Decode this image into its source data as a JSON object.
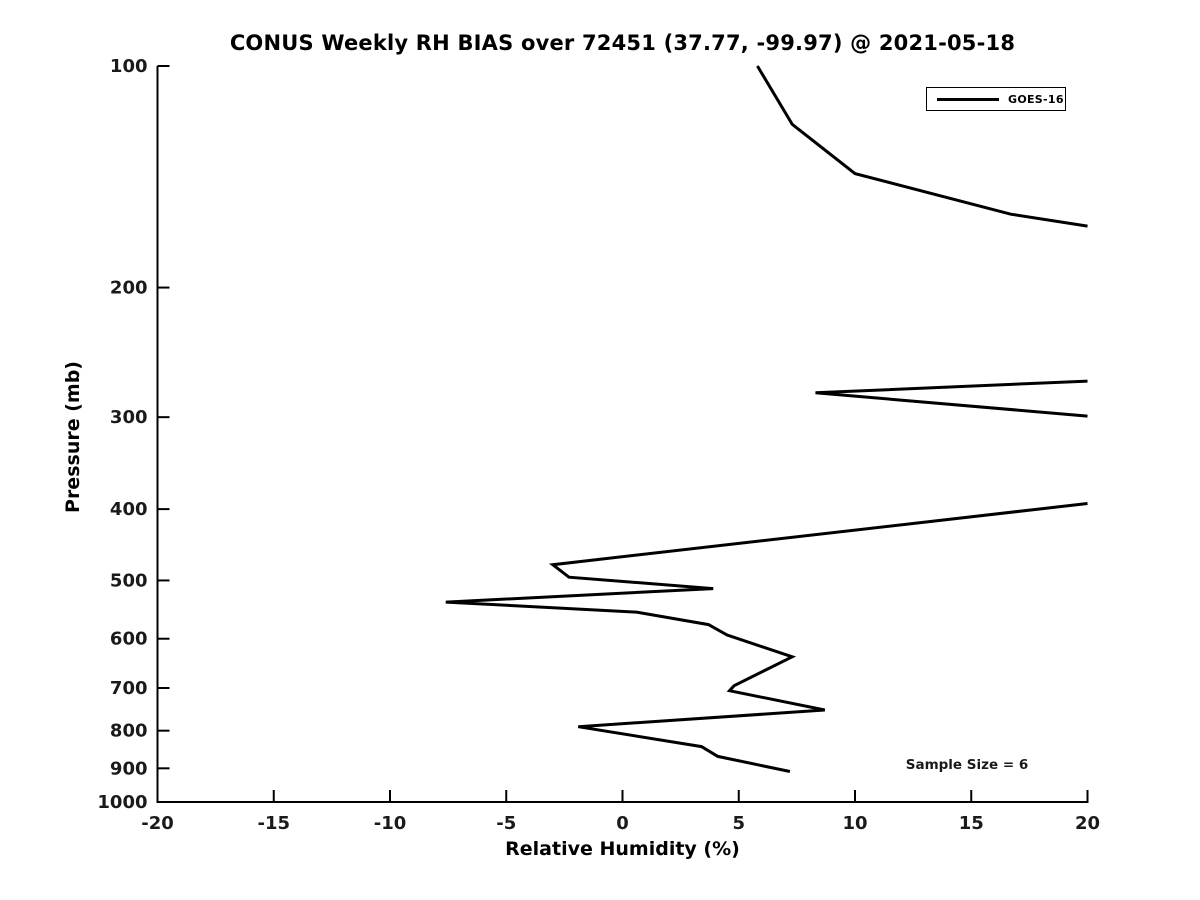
{
  "figure": {
    "background": "#ffffff",
    "line_color": "#000000",
    "text_color": "#1a1a1a"
  },
  "chart_data": {
    "type": "line",
    "title": "CONUS Weekly RH BIAS over 72451 (37.77, -99.97) @ 2021-05-18",
    "xlabel": "Relative Humidity (%)",
    "ylabel": "Pressure (mb)",
    "xlim": [
      -20,
      20
    ],
    "ylim": [
      100,
      1000
    ],
    "y_scale": "log",
    "y_inverted": true,
    "grid": false,
    "x_ticks": [
      -20,
      -15,
      -10,
      -5,
      0,
      5,
      10,
      15,
      20
    ],
    "y_ticks": [
      100,
      200,
      300,
      400,
      500,
      600,
      700,
      800,
      900,
      1000
    ],
    "legend_position": "upper right",
    "annotation": "Sample Size = 6",
    "series": [
      {
        "name": "GOES-16",
        "color": "#000000",
        "segments": [
          [
            [
              5.8,
              100
            ],
            [
              7.3,
              120
            ],
            [
              10.0,
              140
            ],
            [
              16.7,
              159
            ],
            [
              20,
              165
            ]
          ],
          [
            [
              20,
              268
            ],
            [
              8.3,
              278
            ],
            [
              20,
              299
            ]
          ],
          [
            [
              20,
              393
            ],
            [
              -3.0,
              476
            ],
            [
              -2.3,
              495
            ],
            [
              3.9,
              513
            ],
            [
              -7.6,
              535
            ],
            [
              0.6,
              552
            ],
            [
              3.7,
              574
            ],
            [
              4.5,
              593
            ],
            [
              7.3,
              635
            ],
            [
              4.8,
              695
            ],
            [
              4.6,
              706
            ],
            [
              8.7,
              750
            ],
            [
              -1.9,
              790
            ],
            [
              3.4,
              841
            ],
            [
              4.1,
              867
            ],
            [
              7.2,
              909
            ]
          ]
        ]
      }
    ]
  }
}
